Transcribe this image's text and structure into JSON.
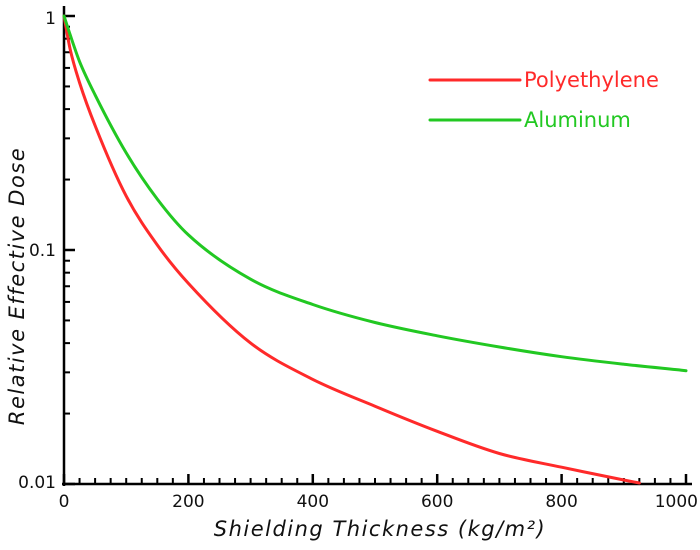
{
  "chart_data": {
    "type": "line",
    "title": "",
    "xlabel": "Shielding Thickness (kg/m²)",
    "ylabel": "Relative Effective Dose",
    "xlim": [
      0,
      1000
    ],
    "ylim": [
      0.01,
      1
    ],
    "yscale": "log",
    "grid": false,
    "legend_position": "top-right",
    "x_ticks": [
      "0",
      "200",
      "400",
      "600",
      "800",
      "1000"
    ],
    "y_ticks": [
      "0.01",
      "0.1",
      "1"
    ],
    "series": [
      {
        "name": "Polyethylene",
        "color": "#ff2a2a",
        "x": [
          0,
          10,
          25,
          50,
          100,
          150,
          200,
          300,
          400,
          500,
          600,
          700,
          800,
          900,
          925
        ],
        "y": [
          1.0,
          0.72,
          0.52,
          0.34,
          0.17,
          0.105,
          0.072,
          0.04,
          0.028,
          0.0215,
          0.0168,
          0.0135,
          0.0118,
          0.0104,
          0.0101
        ]
      },
      {
        "name": "Aluminum",
        "color": "#22c822",
        "x": [
          0,
          10,
          25,
          50,
          100,
          150,
          200,
          300,
          400,
          500,
          600,
          700,
          800,
          900,
          1000
        ],
        "y": [
          1.0,
          0.83,
          0.64,
          0.46,
          0.26,
          0.165,
          0.116,
          0.075,
          0.0585,
          0.049,
          0.043,
          0.0385,
          0.035,
          0.0325,
          0.0305
        ]
      }
    ]
  }
}
